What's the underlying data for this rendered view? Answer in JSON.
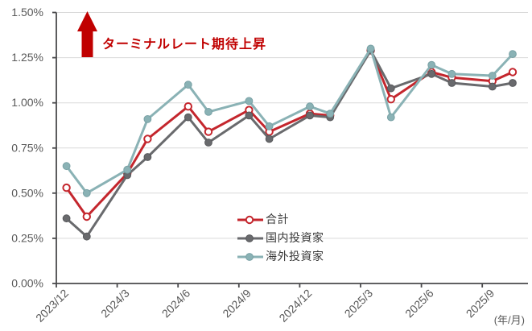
{
  "colors": {
    "grid": "#D9D9D9",
    "axis": "#4A4A4C",
    "tick_label": "#595959",
    "legend_text": "#3A3A3A",
    "annotation": "#C00000"
  },
  "annotation": {
    "text": "ターミナルレート期待上昇"
  },
  "chart_data": {
    "type": "line",
    "title": "",
    "xlabel_note": "(年/月)",
    "grid": "horizontal",
    "legend_position": "inside-bottom-center",
    "ylim": [
      0,
      1.5
    ],
    "y_ticks": [
      {
        "value": 0.0,
        "label": "0.00%"
      },
      {
        "value": 0.25,
        "label": "0.25%"
      },
      {
        "value": 0.5,
        "label": "0.50%"
      },
      {
        "value": 0.75,
        "label": "0.75%"
      },
      {
        "value": 1.0,
        "label": "1.00%"
      },
      {
        "value": 1.25,
        "label": "1.25%"
      },
      {
        "value": 1.5,
        "label": "1.50%"
      }
    ],
    "x_ticks": [
      "2023/12",
      "2024/3",
      "2024/6",
      "2024/9",
      "2024/12",
      "2025/3",
      "2025/6",
      "2025/9"
    ],
    "x": [
      "2023/12",
      "2024/1",
      "2024/3",
      "2024/4",
      "2024/6",
      "2024/7",
      "2024/9",
      "2024/10",
      "2024/12",
      "2025/1",
      "2025/3",
      "2025/4",
      "2025/6",
      "2025/7",
      "2025/9",
      "2025/10"
    ],
    "series": [
      {
        "id": "total",
        "name": "合計",
        "color": "#C4262D",
        "edge": "#C4262D",
        "marker": "open-circle",
        "values": [
          0.53,
          0.37,
          0.61,
          0.8,
          0.98,
          0.84,
          0.96,
          0.84,
          0.94,
          0.93,
          1.29,
          1.02,
          1.17,
          1.14,
          1.12,
          1.17
        ]
      },
      {
        "id": "domestic",
        "name": "国内投資家",
        "color": "#696A6D",
        "edge": "#58595C",
        "marker": "filled-circle",
        "values": [
          0.36,
          0.26,
          0.6,
          0.7,
          0.92,
          0.78,
          0.93,
          0.8,
          0.93,
          0.92,
          1.29,
          1.08,
          1.16,
          1.11,
          1.09,
          1.11
        ]
      },
      {
        "id": "overseas",
        "name": "海外投資家",
        "color": "#8AB2B5",
        "edge": "#79A1A5",
        "marker": "filled-circle",
        "values": [
          0.65,
          0.5,
          0.63,
          0.91,
          1.1,
          0.95,
          1.01,
          0.87,
          0.98,
          0.94,
          1.3,
          0.92,
          1.21,
          1.16,
          1.15,
          1.27
        ]
      }
    ]
  }
}
